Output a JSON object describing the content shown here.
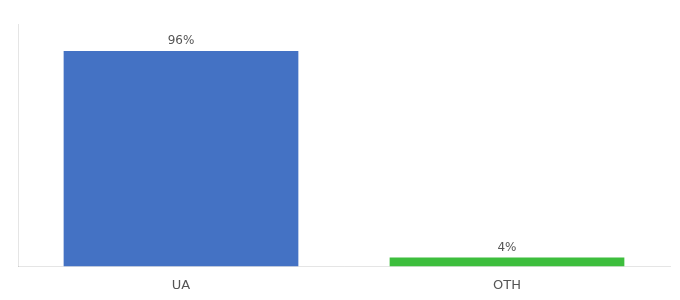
{
  "chart_data": {
    "type": "bar",
    "categories": [
      "UA",
      "OTH"
    ],
    "values": [
      96,
      4
    ],
    "value_labels": [
      "96%",
      "4%"
    ],
    "data_labels": true,
    "colors": [
      "#4472C4",
      "#3DBE3D"
    ],
    "ylim": [
      0,
      108
    ],
    "grid": false,
    "tick_labels": "x"
  }
}
